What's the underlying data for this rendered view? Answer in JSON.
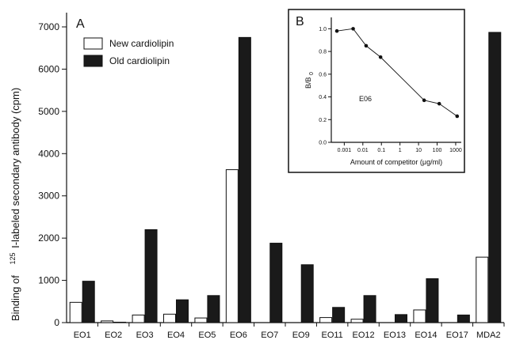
{
  "chart_data": [
    {
      "type": "bar",
      "panel_letter": "A",
      "ylabel_prefix": "Binding of",
      "ylabel_sup": "125",
      "ylabel_rest": "I-labeled secondary antibody (cpm)",
      "ylim": [
        0,
        7000
      ],
      "yticks": [
        0,
        1000,
        2000,
        3000,
        4000,
        5000,
        6000,
        7000
      ],
      "legend_placement": "top-left",
      "categories": [
        "EO1",
        "EO2",
        "EO3",
        "EO4",
        "EO5",
        "EO6",
        "EO7",
        "EO9",
        "EO11",
        "EO12",
        "EO13",
        "EO14",
        "EO17",
        "MDA2"
      ],
      "series": [
        {
          "name": "New cardiolipin",
          "color": "#ffffff",
          "values": [
            480,
            40,
            180,
            200,
            110,
            3620,
            0,
            0,
            120,
            80,
            0,
            300,
            0,
            1550
          ]
        },
        {
          "name": "Old cardiolipin",
          "color": "#1a1a1a",
          "values": [
            980,
            10,
            2200,
            540,
            640,
            6750,
            1880,
            1370,
            360,
            640,
            190,
            1040,
            180,
            6870
          ]
        }
      ]
    },
    {
      "type": "line",
      "panel_letter": "B",
      "annotation": "E06",
      "xlabel": "Amount of competitor (μg/ml)",
      "ylabel_base": "B/B",
      "ylabel_sub": "0",
      "xscale": "log",
      "xlim": [
        0.0002,
        2000
      ],
      "xticks": [
        "0.001",
        "0.01",
        "0.1",
        "1",
        "10",
        "100",
        "1000"
      ],
      "ylim": [
        0,
        1.1
      ],
      "yticks": [
        "0.0",
        "0.2",
        "0.4",
        "0.6",
        "0.8",
        "1.0"
      ],
      "x": [
        0.0004,
        0.003,
        0.015,
        0.09,
        20,
        130,
        1200
      ],
      "y": [
        0.98,
        1.0,
        0.85,
        0.75,
        0.37,
        0.34,
        0.23
      ]
    }
  ]
}
